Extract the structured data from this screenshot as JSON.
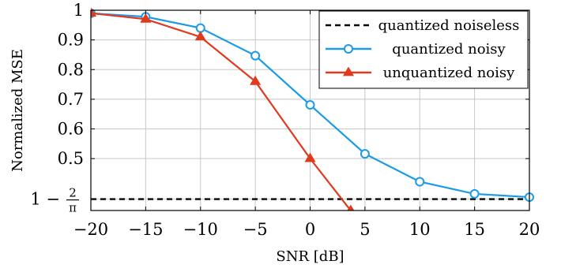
{
  "chart_data": {
    "type": "line",
    "xlabel": "SNR [dB]",
    "ylabel": "Normalized MSE",
    "xlim": [
      -20,
      20
    ],
    "ylim": [
      0.325,
      1.0
    ],
    "x_ticks": [
      -20,
      -15,
      -10,
      -5,
      0,
      5,
      10,
      15,
      20
    ],
    "x_tick_labels": [
      "−20",
      "−15",
      "−10",
      "−5",
      "0",
      "5",
      "10",
      "15",
      "20"
    ],
    "y_ticks": [
      0.5,
      0.6,
      0.7,
      0.8,
      0.9,
      1.0
    ],
    "y_tick_labels": [
      "0.5",
      "0.6",
      "0.7",
      "0.8",
      "0.9",
      "1"
    ],
    "special_tick": {
      "value": 0.3634,
      "label_prefix": "1 −",
      "numerator": "2",
      "denominator": "π"
    },
    "grid": true,
    "legend_position": "top-right",
    "series": [
      {
        "name": "quantized noiseless",
        "style": "dashed",
        "color": "#000000",
        "marker": "none",
        "x": [
          -20,
          20
        ],
        "y": [
          0.3634,
          0.3634
        ]
      },
      {
        "name": "quantized noisy",
        "style": "solid",
        "color": "#1a9be8",
        "marker": "circle",
        "x": [
          -20,
          -15,
          -10,
          -5,
          0,
          5,
          10,
          15,
          20
        ],
        "y": [
          0.99,
          0.978,
          0.94,
          0.847,
          0.681,
          0.516,
          0.422,
          0.381,
          0.37
        ]
      },
      {
        "name": "unquantized noisy",
        "style": "solid",
        "color": "#e03a1e",
        "marker": "triangle",
        "x": [
          -20,
          -15,
          -10,
          -5,
          0,
          3.7
        ],
        "y": [
          0.99,
          0.97,
          0.91,
          0.76,
          0.5,
          0.325
        ]
      }
    ]
  }
}
